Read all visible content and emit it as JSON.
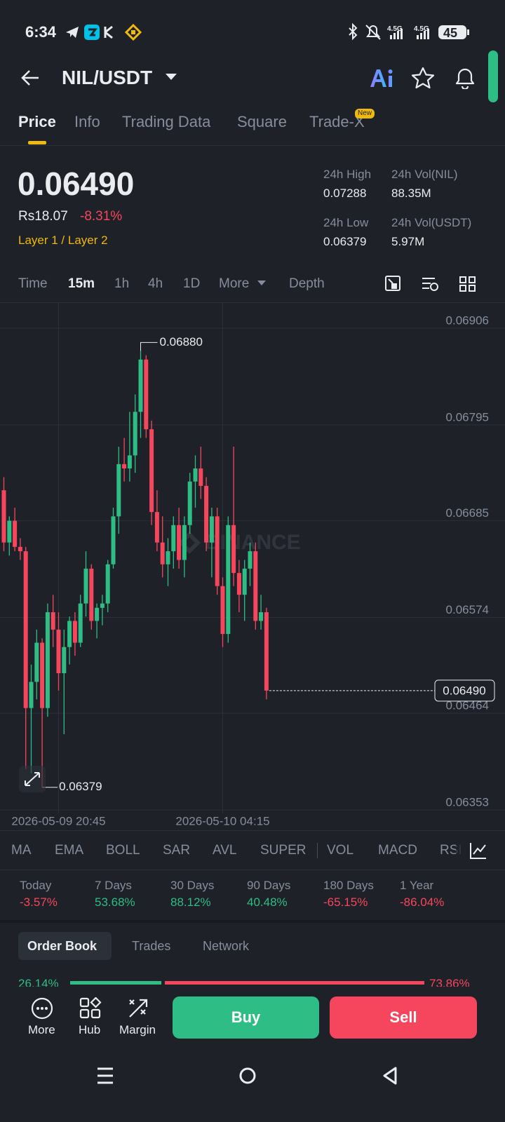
{
  "status_bar": {
    "time": "6:34",
    "battery": "45"
  },
  "header": {
    "pair": "NIL/USDT"
  },
  "tabs": {
    "items": [
      "Price",
      "Info",
      "Trading Data",
      "Square",
      "Trade-X"
    ],
    "badge": "New"
  },
  "price": {
    "last": "0.06490",
    "fiat": "Rs18.07",
    "change": "-8.31%",
    "tag": "Layer 1 / Layer 2"
  },
  "stats": [
    {
      "label": "24h High",
      "value": "0.07288"
    },
    {
      "label": "24h Vol(NIL)",
      "value": "88.35M"
    },
    {
      "label": "24h Low",
      "value": "0.06379"
    },
    {
      "label": "24h Vol(USDT)",
      "value": "5.97M"
    }
  ],
  "intervals": [
    "Time",
    "15m",
    "1h",
    "4h",
    "1D",
    "More",
    "Depth"
  ],
  "chart_data": {
    "type": "candlestick",
    "watermark": "BINANCE",
    "categories": [
      null,
      null,
      null,
      null,
      null,
      null,
      null,
      null,
      null,
      null,
      "2026-05-09 20:45",
      null,
      null,
      null,
      null,
      null,
      null,
      null,
      null,
      null,
      null,
      null,
      null,
      null,
      null,
      null,
      null,
      null,
      null,
      null,
      null,
      null,
      null,
      null,
      null,
      null,
      null,
      null,
      null,
      null,
      "2026-05-10 04:15",
      null,
      null,
      null,
      null,
      null,
      null,
      null,
      null
    ],
    "open": [
      0.0672,
      0.0666,
      0.06685,
      0.06655,
      0.0665,
      0.0647,
      0.065,
      0.06545,
      0.0647,
      0.0658,
      0.0656,
      0.0651,
      0.0654,
      0.0657,
      0.06545,
      0.0659,
      0.0663,
      0.0657,
      0.06585,
      0.0659,
      0.06635,
      0.0669,
      0.0675,
      0.06745,
      0.0676,
      0.0681,
      0.0687,
      0.0679,
      0.06695,
      0.0666,
      0.06635,
      0.0665,
      0.0668,
      0.0664,
      0.0668,
      0.0673,
      0.06745,
      0.06725,
      0.0666,
      0.0669,
      0.0661,
      0.06555,
      0.0668,
      0.06625,
      0.066,
      0.0663,
      0.0665,
      0.0657,
      0.0658
    ],
    "high": [
      0.06735,
      0.0669,
      0.067,
      0.06665,
      0.06655,
      0.0652,
      0.0656,
      0.0655,
      0.0659,
      0.066,
      0.0658,
      0.0656,
      0.06575,
      0.0658,
      0.066,
      0.0665,
      0.06635,
      0.0659,
      0.066,
      0.0664,
      0.067,
      0.0677,
      0.0678,
      0.0681,
      0.0683,
      0.0688,
      0.06875,
      0.068,
      0.0672,
      0.0669,
      0.06665,
      0.0669,
      0.067,
      0.0669,
      0.0674,
      0.0676,
      0.0677,
      0.06735,
      0.067,
      0.067,
      0.0662,
      0.0669,
      0.0677,
      0.0664,
      0.0664,
      0.0666,
      0.0666,
      0.066,
      0.06585
    ],
    "low": [
      0.0665,
      0.06645,
      0.0665,
      0.0664,
      0.064,
      0.06395,
      0.0648,
      0.06379,
      0.0646,
      0.0654,
      0.0649,
      0.0644,
      0.0652,
      0.0653,
      0.0654,
      0.06575,
      0.0656,
      0.0655,
      0.06565,
      0.0658,
      0.0663,
      0.0667,
      0.0673,
      0.0673,
      0.0674,
      0.0678,
      0.0678,
      0.0668,
      0.0665,
      0.0662,
      0.0661,
      0.0663,
      0.0663,
      0.0662,
      0.0667,
      0.067,
      0.0671,
      0.0665,
      0.0662,
      0.066,
      0.0654,
      0.06545,
      0.0661,
      0.0658,
      0.0657,
      0.0661,
      0.0656,
      0.0656,
      0.0648
    ],
    "close": [
      0.0666,
      0.06685,
      0.06655,
      0.0665,
      0.0647,
      0.065,
      0.06545,
      0.0647,
      0.0658,
      0.0656,
      0.0651,
      0.0654,
      0.0657,
      0.06545,
      0.0659,
      0.0663,
      0.0657,
      0.06585,
      0.0659,
      0.06635,
      0.0669,
      0.0675,
      0.06745,
      0.0676,
      0.0681,
      0.0687,
      0.0679,
      0.06695,
      0.0666,
      0.06635,
      0.0665,
      0.0668,
      0.0664,
      0.0668,
      0.0673,
      0.06745,
      0.06725,
      0.0666,
      0.0669,
      0.0661,
      0.06555,
      0.0668,
      0.06625,
      0.066,
      0.0663,
      0.0665,
      0.0657,
      0.0658,
      0.0649
    ],
    "up_color": "#2ebd85",
    "down_color": "#f6465d",
    "ylim": [
      0.06349,
      0.06935
    ],
    "yticks": [
      0.06906,
      0.06795,
      0.06685,
      0.06574,
      0.06464,
      0.06353
    ],
    "grid": true,
    "max_marker": {
      "value": 0.0688,
      "label": "0.06880"
    },
    "min_marker": {
      "value": 0.06379,
      "label": "0.06379"
    },
    "last_price": {
      "value": 0.0649,
      "label": "0.06490"
    }
  },
  "indicators": [
    "MA",
    "EMA",
    "BOLL",
    "SAR",
    "AVL",
    "SUPER",
    "VOL",
    "MACD",
    "RSI"
  ],
  "performance": [
    {
      "label": "Today",
      "value": "-3.57%"
    },
    {
      "label": "7 Days",
      "value": "53.68%"
    },
    {
      "label": "30 Days",
      "value": "88.12%"
    },
    {
      "label": "90 Days",
      "value": "40.48%"
    },
    {
      "label": "180 Days",
      "value": "-65.15%"
    },
    {
      "label": "1 Year",
      "value": "-86.04%"
    }
  ],
  "order_tabs": [
    "Order Book",
    "Trades",
    "Network"
  ],
  "depth": {
    "buy": "26.14%",
    "sell": "73.86%"
  },
  "actions": {
    "more": "More",
    "hub": "Hub",
    "margin": "Margin",
    "buy": "Buy",
    "sell": "Sell"
  }
}
